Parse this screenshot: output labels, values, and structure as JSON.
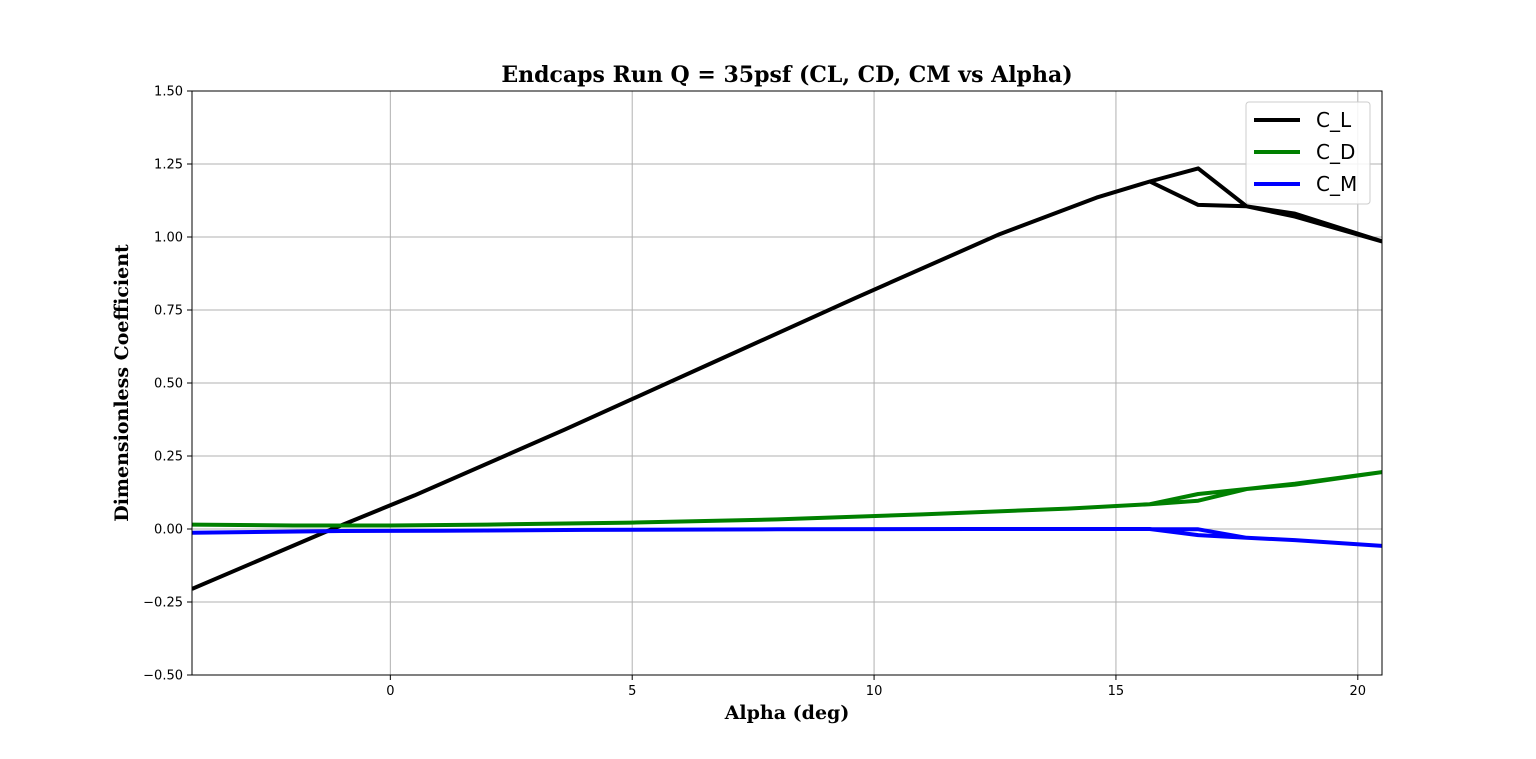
{
  "chart_data": {
    "type": "line",
    "title": "Endcaps Run Q = 35psf (CL, CD, CM vs Alpha)",
    "xlabel": "Alpha (deg)",
    "ylabel": "Dimensionless Coefficient",
    "xlim": [
      -4.1,
      20.5
    ],
    "ylim": [
      -0.5,
      1.5
    ],
    "xticks": [
      0,
      5,
      10,
      15,
      20
    ],
    "xtick_labels": [
      "0",
      "5",
      "10",
      "15",
      "20"
    ],
    "yticks": [
      -0.5,
      -0.25,
      0.0,
      0.25,
      0.5,
      0.75,
      1.0,
      1.25,
      1.5
    ],
    "ytick_labels": [
      "−0.50",
      "−0.25",
      "0.00",
      "0.25",
      "0.50",
      "0.75",
      "1.00",
      "1.25",
      "1.50"
    ],
    "grid": true,
    "legend_position": "top-right",
    "series": [
      {
        "name": "C_L",
        "color": "#000000",
        "x": [
          -4.1,
          -1.2,
          0.5,
          3.6,
          6.6,
          9.6,
          12.6,
          14.6,
          15.7,
          16.7,
          17.7,
          18.7,
          20.5,
          18.7,
          17.7,
          16.7,
          15.7
        ],
        "y": [
          -0.205,
          0.0,
          0.115,
          0.34,
          0.565,
          0.79,
          1.01,
          1.135,
          1.19,
          1.235,
          1.105,
          1.08,
          0.985,
          1.07,
          1.105,
          1.11,
          1.19
        ]
      },
      {
        "name": "C_D",
        "color": "#008000",
        "x": [
          -4.1,
          -2.0,
          0.0,
          2.0,
          5.0,
          8.0,
          11.0,
          14.0,
          15.7,
          16.7,
          17.7,
          18.7,
          20.5,
          18.7,
          17.7,
          16.7,
          15.7
        ],
        "y": [
          0.015,
          0.012,
          0.012,
          0.015,
          0.022,
          0.033,
          0.05,
          0.07,
          0.085,
          0.12,
          0.137,
          0.152,
          0.195,
          0.155,
          0.137,
          0.097,
          0.085
        ]
      },
      {
        "name": "C_M",
        "color": "#0000ff",
        "x": [
          -4.1,
          -1.0,
          1.0,
          4.0,
          8.0,
          12.0,
          15.7,
          16.7,
          17.7,
          18.7,
          20.5,
          18.7,
          17.7,
          16.7,
          15.7
        ],
        "y": [
          -0.013,
          -0.007,
          -0.006,
          -0.003,
          -0.001,
          0.0,
          0.0,
          -0.021,
          -0.03,
          -0.038,
          -0.058,
          -0.038,
          -0.03,
          -0.001,
          0.0
        ]
      }
    ]
  }
}
